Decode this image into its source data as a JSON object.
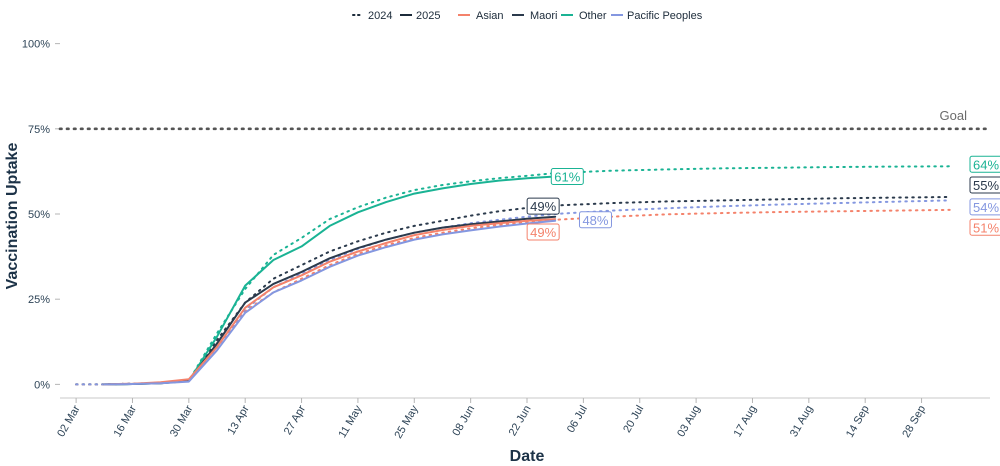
{
  "chart_data": {
    "type": "line",
    "xlabel": "Date",
    "ylabel": "Vaccination Uptake",
    "x_ticks": [
      "02 Mar",
      "16 Mar",
      "30 Mar",
      "13 Apr",
      "27 Apr",
      "11 May",
      "25 May",
      "08 Jun",
      "22 Jun",
      "06 Jul",
      "20 Jul",
      "03 Aug",
      "17 Aug",
      "31 Aug",
      "14 Sep",
      "28 Sep"
    ],
    "x_range": [
      "2025-02-26",
      "2025-10-15"
    ],
    "y_ticks": [
      "0%",
      "25%",
      "50%",
      "75%",
      "100%"
    ],
    "y_range": [
      -4,
      104
    ],
    "goal": {
      "value": 75,
      "label": "Goal"
    },
    "legend": {
      "position": "top",
      "years": [
        "2024",
        "2025"
      ],
      "groups": [
        "Asian",
        "Maori",
        "Other",
        "Pacific Peoples"
      ]
    },
    "colors": {
      "Asian": "#f4826b",
      "Maori": "#2b3a4c",
      "Other": "#1ab394",
      "Pacific Peoples": "#8497e0",
      "goal": "#555555"
    },
    "series": [
      {
        "group": "Other",
        "year": "2025",
        "x": [
          "2025-03-09",
          "2025-03-16",
          "2025-03-23",
          "2025-03-30",
          "2025-04-06",
          "2025-04-13",
          "2025-04-20",
          "2025-04-27",
          "2025-05-04",
          "2025-05-11",
          "2025-05-18",
          "2025-05-25",
          "2025-06-01",
          "2025-06-08",
          "2025-06-15",
          "2025-06-22",
          "2025-06-29"
        ],
        "y": [
          0,
          0.1,
          0.3,
          1,
          14,
          29,
          36.5,
          40.5,
          46.5,
          50.5,
          53.5,
          56,
          57.5,
          58.8,
          59.8,
          60.5,
          61
        ]
      },
      {
        "group": "Maori",
        "year": "2025",
        "x": [
          "2025-03-09",
          "2025-03-16",
          "2025-03-23",
          "2025-03-30",
          "2025-04-06",
          "2025-04-13",
          "2025-04-20",
          "2025-04-27",
          "2025-05-04",
          "2025-05-11",
          "2025-05-18",
          "2025-05-25",
          "2025-06-01",
          "2025-06-08",
          "2025-06-15",
          "2025-06-22",
          "2025-06-29"
        ],
        "y": [
          0,
          0.1,
          0.3,
          1,
          12,
          24,
          29.5,
          33,
          37,
          40,
          42.5,
          44.5,
          46,
          47,
          47.8,
          48.6,
          49.2
        ]
      },
      {
        "group": "Asian",
        "year": "2025",
        "x": [
          "2025-03-09",
          "2025-03-16",
          "2025-03-23",
          "2025-03-30",
          "2025-04-06",
          "2025-04-13",
          "2025-04-20",
          "2025-04-27",
          "2025-05-04",
          "2025-05-11",
          "2025-05-18",
          "2025-05-25",
          "2025-06-01",
          "2025-06-08",
          "2025-06-15",
          "2025-06-22",
          "2025-06-29"
        ],
        "y": [
          0,
          0.2,
          0.6,
          1.5,
          11,
          22.5,
          28.5,
          32,
          36,
          39,
          41.5,
          43.8,
          45.3,
          46.5,
          47.3,
          48,
          48.5
        ]
      },
      {
        "group": "Pacific Peoples",
        "year": "2025",
        "x": [
          "2025-03-09",
          "2025-03-16",
          "2025-03-23",
          "2025-03-30",
          "2025-04-06",
          "2025-04-13",
          "2025-04-20",
          "2025-04-27",
          "2025-05-04",
          "2025-05-11",
          "2025-05-18",
          "2025-05-25",
          "2025-06-01",
          "2025-06-08",
          "2025-06-15",
          "2025-06-22",
          "2025-06-29"
        ],
        "y": [
          0,
          0.1,
          0.3,
          0.8,
          10,
          21,
          27,
          30.5,
          34.5,
          37.8,
          40.3,
          42.5,
          44,
          45.2,
          46.3,
          47.2,
          48
        ]
      },
      {
        "group": "Other",
        "year": "2024",
        "x": [
          "2025-03-02",
          "2025-03-09",
          "2025-03-16",
          "2025-03-23",
          "2025-03-30",
          "2025-04-06",
          "2025-04-13",
          "2025-04-20",
          "2025-04-27",
          "2025-05-04",
          "2025-05-11",
          "2025-05-18",
          "2025-05-25",
          "2025-06-01",
          "2025-06-08",
          "2025-06-15",
          "2025-06-22",
          "2025-06-29",
          "2025-07-13",
          "2025-07-27",
          "2025-08-10",
          "2025-08-24",
          "2025-09-07",
          "2025-09-21",
          "2025-10-05"
        ],
        "y": [
          0,
          0,
          0.2,
          0.4,
          1,
          15,
          28,
          38,
          43,
          48.5,
          52,
          54.8,
          57,
          58.5,
          59.6,
          60.5,
          61.2,
          62,
          62.7,
          63.1,
          63.4,
          63.6,
          63.8,
          63.9,
          64
        ]
      },
      {
        "group": "Maori",
        "year": "2024",
        "x": [
          "2025-03-02",
          "2025-03-09",
          "2025-03-16",
          "2025-03-23",
          "2025-03-30",
          "2025-04-06",
          "2025-04-13",
          "2025-04-20",
          "2025-04-27",
          "2025-05-04",
          "2025-05-11",
          "2025-05-18",
          "2025-05-25",
          "2025-06-01",
          "2025-06-08",
          "2025-06-15",
          "2025-06-22",
          "2025-06-29",
          "2025-07-13",
          "2025-07-27",
          "2025-08-10",
          "2025-08-24",
          "2025-09-07",
          "2025-09-21",
          "2025-10-05"
        ],
        "y": [
          0,
          0,
          0.2,
          0.4,
          1,
          13,
          24,
          31,
          35,
          39,
          42,
          44.5,
          46.5,
          48,
          49.5,
          50.8,
          51.8,
          52.5,
          53.2,
          53.7,
          54,
          54.3,
          54.6,
          54.8,
          55
        ]
      },
      {
        "group": "Asian",
        "year": "2024",
        "x": [
          "2025-03-02",
          "2025-03-09",
          "2025-03-16",
          "2025-03-23",
          "2025-03-30",
          "2025-04-06",
          "2025-04-13",
          "2025-04-20",
          "2025-04-27",
          "2025-05-04",
          "2025-05-11",
          "2025-05-18",
          "2025-05-25",
          "2025-06-01",
          "2025-06-08",
          "2025-06-15",
          "2025-06-22",
          "2025-06-29",
          "2025-07-13",
          "2025-07-27",
          "2025-08-10",
          "2025-08-24",
          "2025-09-07",
          "2025-09-21",
          "2025-10-05"
        ],
        "y": [
          0,
          0,
          0.2,
          0.5,
          1.2,
          11,
          21.5,
          27,
          31,
          35,
          38.3,
          40.8,
          43,
          44.5,
          45.8,
          46.8,
          47.6,
          48.3,
          49.2,
          49.9,
          50.3,
          50.6,
          50.8,
          51,
          51.2
        ]
      },
      {
        "group": "Pacific Peoples",
        "year": "2024",
        "x": [
          "2025-03-02",
          "2025-03-09",
          "2025-03-16",
          "2025-03-23",
          "2025-03-30",
          "2025-04-06",
          "2025-04-13",
          "2025-04-20",
          "2025-04-27",
          "2025-05-04",
          "2025-05-11",
          "2025-05-18",
          "2025-05-25",
          "2025-06-01",
          "2025-06-08",
          "2025-06-15",
          "2025-06-22",
          "2025-06-29",
          "2025-07-13",
          "2025-07-27",
          "2025-08-10",
          "2025-08-24",
          "2025-09-07",
          "2025-09-21",
          "2025-10-05"
        ],
        "y": [
          0,
          0,
          0.2,
          0.4,
          1,
          11,
          22,
          28.5,
          32.5,
          36.5,
          39.8,
          42.5,
          44.5,
          46,
          47.3,
          48.3,
          49.2,
          50,
          51,
          51.7,
          52.3,
          52.8,
          53.2,
          53.6,
          54
        ]
      }
    ],
    "end_labels": [
      {
        "text": "61%",
        "series": "Other",
        "year": "2025",
        "x": "2025-07-03",
        "y": 61
      },
      {
        "text": "49%",
        "series": "Maori",
        "year": "2025",
        "x": "2025-06-27",
        "y": 52.3
      },
      {
        "text": "49%",
        "series": "Asian",
        "year": "2025",
        "x": "2025-06-27",
        "y": 44.7
      },
      {
        "text": "48%",
        "series": "Pacific Peoples",
        "year": "2025",
        "x": "2025-07-10",
        "y": 48.3
      },
      {
        "text": "64%",
        "series": "Other",
        "year": "2024",
        "x": "2025-10-15",
        "y": 64.6
      },
      {
        "text": "55%",
        "series": "Maori",
        "year": "2024",
        "x": "2025-10-15",
        "y": 58.5
      },
      {
        "text": "54%",
        "series": "Pacific Peoples",
        "year": "2024",
        "x": "2025-10-15",
        "y": 52.1
      },
      {
        "text": "51%",
        "series": "Asian",
        "year": "2024",
        "x": "2025-10-15",
        "y": 46.1
      }
    ]
  }
}
